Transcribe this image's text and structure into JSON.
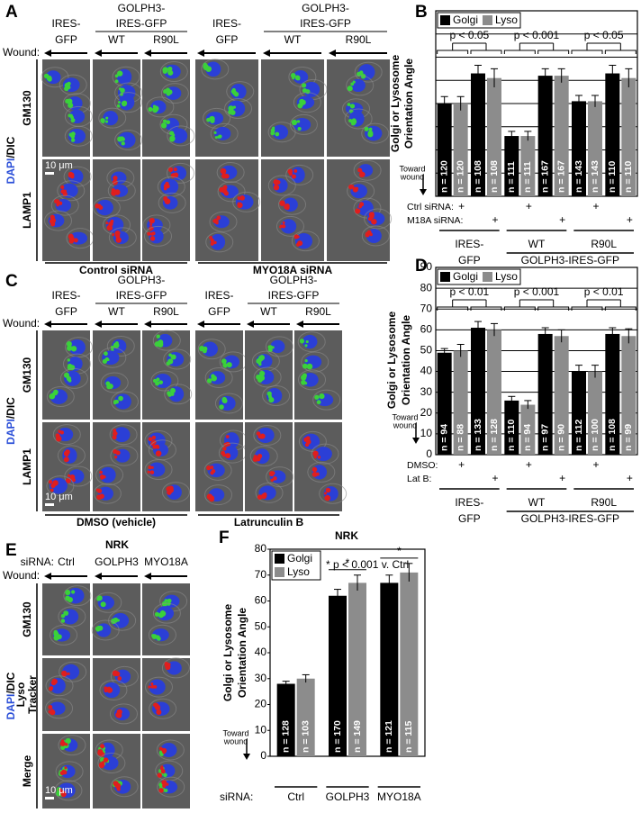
{
  "chart_data": [
    {
      "type": "bar",
      "panel": "B",
      "y_label": [
        "Golgi or Lysosome",
        "Orientation Angle"
      ],
      "toward": [
        "Toward",
        "wound"
      ],
      "categories": [
        null,
        null,
        null,
        null,
        null,
        null
      ],
      "series": [
        {
          "name": "Golgi",
          "color": "#000000",
          "values": [
            40,
            53,
            26,
            52,
            41,
            53
          ],
          "errors": [
            3,
            3.5,
            2,
            3,
            2.5,
            3.5
          ],
          "n_labels": [
            "n = 120",
            "n = 108",
            "n = 111",
            "n = 167",
            "n = 143",
            "n = 110"
          ]
        },
        {
          "name": "Lyso",
          "color": "#8c8c8c",
          "values": [
            40,
            51,
            26,
            52,
            41,
            51
          ],
          "errors": [
            3,
            4,
            2,
            3,
            2.5,
            4
          ],
          "n_labels": [
            "n = 120",
            "n = 108",
            "n = 111",
            "n = 167",
            "n = 143",
            "n = 110"
          ]
        }
      ],
      "ylim": [
        0,
        80
      ],
      "ygrid": [
        10,
        20,
        30,
        40,
        50,
        60,
        70
      ],
      "legend_position": "top-left",
      "legend_direction": "horizontal",
      "comparisons": [
        "p < 0.05",
        "p < 0.001",
        "p < 0.05"
      ],
      "condition_rows": [
        {
          "label": "Ctrl siRNA:",
          "marks": [
            "+",
            null,
            "+",
            null,
            "+",
            null
          ]
        },
        {
          "label": "M18A siRNA:",
          "marks": [
            null,
            "+",
            null,
            "+",
            null,
            "+"
          ]
        }
      ],
      "groups": [
        [
          "IRES-",
          "GFP"
        ],
        [
          "WT"
        ],
        [
          "R90L"
        ]
      ],
      "super_group": "GOLPH3-IRES-GFP"
    },
    {
      "type": "bar",
      "panel": "D",
      "y_label": [
        "Golgi or Lysosome",
        "Orientation Angle"
      ],
      "toward": [
        "Toward",
        "wound"
      ],
      "categories": [
        null,
        null,
        null,
        null,
        null,
        null
      ],
      "series": [
        {
          "name": "Golgi",
          "color": "#000000",
          "values": [
            49,
            61,
            26,
            58,
            40,
            58
          ],
          "errors": [
            2,
            3,
            2,
            3,
            3,
            3
          ],
          "n_labels": [
            "n = 94",
            "n = 133",
            "n = 110",
            "n = 97",
            "n = 112",
            "n = 108"
          ]
        },
        {
          "name": "Lyso",
          "color": "#8c8c8c",
          "values": [
            50,
            60,
            24,
            57,
            40,
            57
          ],
          "errors": [
            3,
            3,
            2,
            3,
            3,
            3.5
          ],
          "n_labels": [
            "n = 88",
            "n = 128",
            "n = 94",
            "n = 90",
            "n = 100",
            "n = 99"
          ]
        }
      ],
      "ylim": [
        0,
        90
      ],
      "yticks": [
        0,
        10,
        20,
        30,
        40,
        50,
        60,
        70,
        80,
        90
      ],
      "grid": true,
      "legend_position": "top-left",
      "legend_direction": "horizontal",
      "comparisons": [
        "p < 0.01",
        "p < 0.001",
        "p < 0.01"
      ],
      "condition_rows": [
        {
          "label": "DMSO:",
          "marks": [
            "+",
            null,
            "+",
            null,
            "+",
            null
          ]
        },
        {
          "label": "Lat B:",
          "marks": [
            null,
            "+",
            null,
            "+",
            null,
            "+"
          ]
        }
      ],
      "groups": [
        [
          "IRES-",
          "GFP"
        ],
        [
          "WT"
        ],
        [
          "R90L"
        ]
      ],
      "super_group": "GOLPH3-IRES-GFP"
    },
    {
      "type": "bar",
      "panel": "F",
      "title": "NRK",
      "y_label": [
        "Golgi or Lysosome",
        "Orientation Angle"
      ],
      "toward": [
        "Toward",
        "wound"
      ],
      "categories": [
        "Ctrl",
        "GOLPH3",
        "MYO18A"
      ],
      "x_prefix": "siRNA:",
      "series": [
        {
          "name": "Golgi",
          "color": "#000000",
          "values": [
            28,
            62,
            67
          ],
          "errors": [
            1,
            2.5,
            3
          ],
          "n_labels": [
            "n = 128",
            "n = 170",
            "n = 121"
          ]
        },
        {
          "name": "Lyso",
          "color": "#8c8c8c",
          "values": [
            30,
            67,
            71
          ],
          "errors": [
            1.5,
            3,
            3.5
          ],
          "n_labels": [
            "n = 103",
            "n = 149",
            "n = 115"
          ]
        }
      ],
      "ylim": [
        0,
        80
      ],
      "yticks": [
        0,
        10,
        20,
        30,
        40,
        50,
        60,
        70,
        80
      ],
      "grid": false,
      "legend_position": "top-left",
      "legend_direction": "vertical",
      "note": "* p < 0.001 v. Ctrl",
      "stars": [
        "*",
        "*"
      ]
    }
  ],
  "micrographs": [
    {
      "panel": "A",
      "wound": "Wound:",
      "stain": [
        {
          "text": "DAPI",
          "color": "#2b4fd8"
        },
        {
          "text": "/DIC",
          "color": "#000000"
        }
      ],
      "rows": [
        {
          "lines": [
            "GM130"
          ],
          "color": "#2ea02e"
        },
        {
          "lines": [
            "LAMP1"
          ],
          "color": "#d61f1f"
        }
      ],
      "scale": "10 μm",
      "groups": [
        {
          "name": "Control siRNA",
          "control": [
            "IRES-",
            "GFP"
          ],
          "construct": [
            "GOLPH3-",
            "IRES-GFP"
          ],
          "columns": [
            "WT",
            "R90L"
          ]
        },
        {
          "name": "MYO18A siRNA",
          "control": [
            "IRES-",
            "GFP"
          ],
          "construct": [
            "GOLPH3-",
            "IRES-GFP"
          ],
          "columns": [
            "WT",
            "R90L"
          ]
        }
      ]
    },
    {
      "panel": "C",
      "wound": "Wound:",
      "stain": [
        {
          "text": "DAPI",
          "color": "#2b4fd8"
        },
        {
          "text": "/DIC",
          "color": "#000000"
        }
      ],
      "rows": [
        {
          "lines": [
            "GM130"
          ],
          "color": "#2ea02e"
        },
        {
          "lines": [
            "LAMP1"
          ],
          "color": "#d61f1f"
        }
      ],
      "scale": "10 μm",
      "groups": [
        {
          "name": "DMSO (vehicle)",
          "control": [
            "IRES-",
            "GFP"
          ],
          "construct": [
            "GOLPH3-",
            "IRES-GFP"
          ],
          "columns": [
            "WT",
            "R90L"
          ]
        },
        {
          "name": "Latrunculin B",
          "control": [
            "IRES-",
            "GFP"
          ],
          "construct": [
            "GOLPH3-",
            "IRES-GFP"
          ],
          "columns": [
            "WT",
            "R90L"
          ]
        }
      ]
    },
    {
      "panel": "E",
      "title": "NRK",
      "prefix": "siRNA:",
      "columns": [
        "Ctrl",
        "GOLPH3",
        "MYO18A"
      ],
      "wound": "Wound:",
      "stain": [
        {
          "text": "DAPI",
          "color": "#2b4fd8"
        },
        {
          "text": "/DIC",
          "color": "#000000"
        }
      ],
      "rows": [
        {
          "lines": [
            "GM130"
          ],
          "color": "#2ea02e"
        },
        {
          "lines": [
            "Lyso",
            "Tracker"
          ],
          "color": "#d61f1f"
        },
        {
          "lines": [
            "Merge"
          ],
          "color": "#000000"
        }
      ],
      "scale": "10 μm"
    }
  ]
}
